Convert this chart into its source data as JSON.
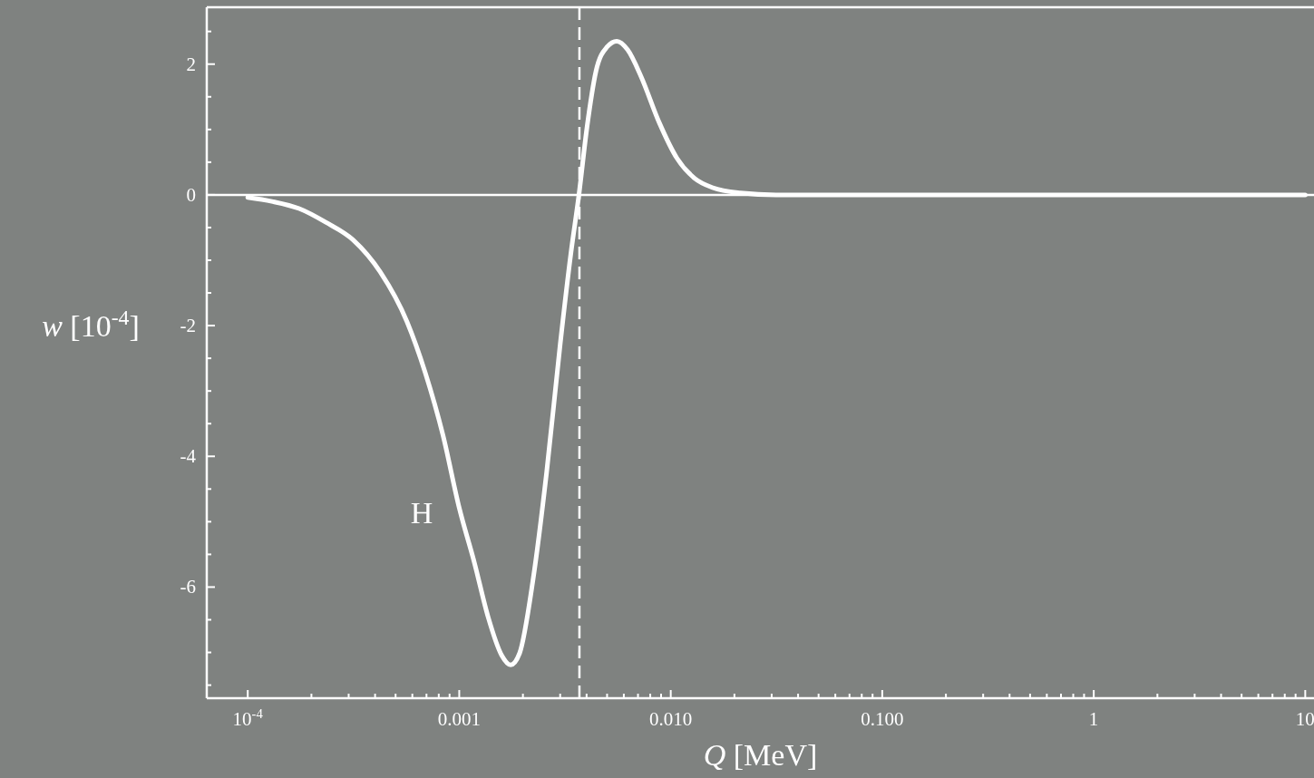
{
  "chart_data": {
    "type": "line",
    "xlabel": "Q [MeV]",
    "ylabel": "w [10$^{-4}$]",
    "log": "x",
    "grid": false,
    "marker": "none",
    "line_style": "solid",
    "xlim": [
      6.4e-05,
      11
    ],
    "ylim": [
      -7.7,
      2.87
    ],
    "xticks": [
      {
        "value": 0.0001,
        "label": "10$^{-4}$"
      },
      {
        "value": 0.0002,
        "label": null
      },
      {
        "value": 0.0003,
        "label": null
      },
      {
        "value": 0.0004,
        "label": null
      },
      {
        "value": 0.0005,
        "label": null
      },
      {
        "value": 0.0006,
        "label": null
      },
      {
        "value": 0.0007,
        "label": null
      },
      {
        "value": 0.0008,
        "label": null
      },
      {
        "value": 0.0009,
        "label": null
      },
      {
        "value": 0.001,
        "label": "0.001"
      },
      {
        "value": 0.002,
        "label": null
      },
      {
        "value": 0.003,
        "label": null
      },
      {
        "value": 0.004,
        "label": null
      },
      {
        "value": 0.005,
        "label": null
      },
      {
        "value": 0.006,
        "label": null
      },
      {
        "value": 0.007,
        "label": null
      },
      {
        "value": 0.008,
        "label": null
      },
      {
        "value": 0.009,
        "label": null
      },
      {
        "value": 0.01,
        "label": "0.010"
      },
      {
        "value": 0.02,
        "label": null
      },
      {
        "value": 0.03,
        "label": null
      },
      {
        "value": 0.04,
        "label": null
      },
      {
        "value": 0.05,
        "label": null
      },
      {
        "value": 0.06,
        "label": null
      },
      {
        "value": 0.07,
        "label": null
      },
      {
        "value": 0.08,
        "label": null
      },
      {
        "value": 0.09,
        "label": null
      },
      {
        "value": 0.1,
        "label": "0.100"
      },
      {
        "value": 0.2,
        "label": null
      },
      {
        "value": 0.3,
        "label": null
      },
      {
        "value": 0.4,
        "label": null
      },
      {
        "value": 0.5,
        "label": null
      },
      {
        "value": 0.6,
        "label": null
      },
      {
        "value": 0.7,
        "label": null
      },
      {
        "value": 0.8,
        "label": null
      },
      {
        "value": 0.9,
        "label": null
      },
      {
        "value": 1,
        "label": "1"
      },
      {
        "value": 2,
        "label": null
      },
      {
        "value": 3,
        "label": null
      },
      {
        "value": 4,
        "label": null
      },
      {
        "value": 5,
        "label": null
      },
      {
        "value": 6,
        "label": null
      },
      {
        "value": 7,
        "label": null
      },
      {
        "value": 8,
        "label": null
      },
      {
        "value": 9,
        "label": null
      },
      {
        "value": 10,
        "label": "10"
      }
    ],
    "yticks": [
      {
        "value": -7.5,
        "label": null
      },
      {
        "value": -7,
        "label": null
      },
      {
        "value": -6.5,
        "label": null
      },
      -6,
      {
        "value": -5.5,
        "label": null
      },
      {
        "value": -5,
        "label": null
      },
      {
        "value": -4.5,
        "label": null
      },
      -4,
      {
        "value": -3.5,
        "label": null
      },
      {
        "value": -3,
        "label": null
      },
      {
        "value": -2.5,
        "label": null
      },
      -2,
      {
        "value": -1.5,
        "label": null
      },
      {
        "value": -1,
        "label": null
      },
      {
        "value": -0.5,
        "label": null
      },
      0,
      {
        "value": 0.5,
        "label": null
      },
      {
        "value": 1,
        "label": null
      },
      {
        "value": 1.5,
        "label": null
      },
      2,
      {
        "value": 2.5,
        "label": null
      }
    ],
    "ref_lines": [
      {
        "axis": "y",
        "value": 0,
        "color": "#ffffff",
        "line_style": "solid"
      },
      {
        "axis": "x",
        "value": 0.0037,
        "color": "#ffffff",
        "line_style": "dashed"
      }
    ],
    "annotations": [
      "H"
    ],
    "series": [
      {
        "color": "#ffffff",
        "x": [
          0.0001,
          0.00013,
          0.000175,
          0.000234,
          0.000315,
          0.000423,
          0.000566,
          0.000689,
          0.000838,
          0.001,
          0.00118,
          0.00137,
          0.001585,
          0.00175,
          0.00193,
          0.00223,
          0.00259,
          0.003,
          0.00337,
          0.00368,
          0.00402,
          0.00443,
          0.00499,
          0.00556,
          0.00625,
          0.00724,
          0.00881,
          0.0107,
          0.013,
          0.0158,
          0.0213,
          0.0315,
          0.124,
          10
        ],
        "values": [
          -0.04,
          -0.1,
          -0.21,
          -0.42,
          -0.69,
          -1.18,
          -1.94,
          -2.71,
          -3.68,
          -4.79,
          -5.63,
          -6.46,
          -7.04,
          -7.19,
          -7.01,
          -5.9,
          -4.24,
          -2.29,
          -0.9,
          0,
          1.04,
          1.89,
          2.26,
          2.35,
          2.22,
          1.81,
          1.11,
          0.56,
          0.25,
          0.11,
          0.03,
          0,
          0,
          0
        ]
      }
    ]
  }
}
